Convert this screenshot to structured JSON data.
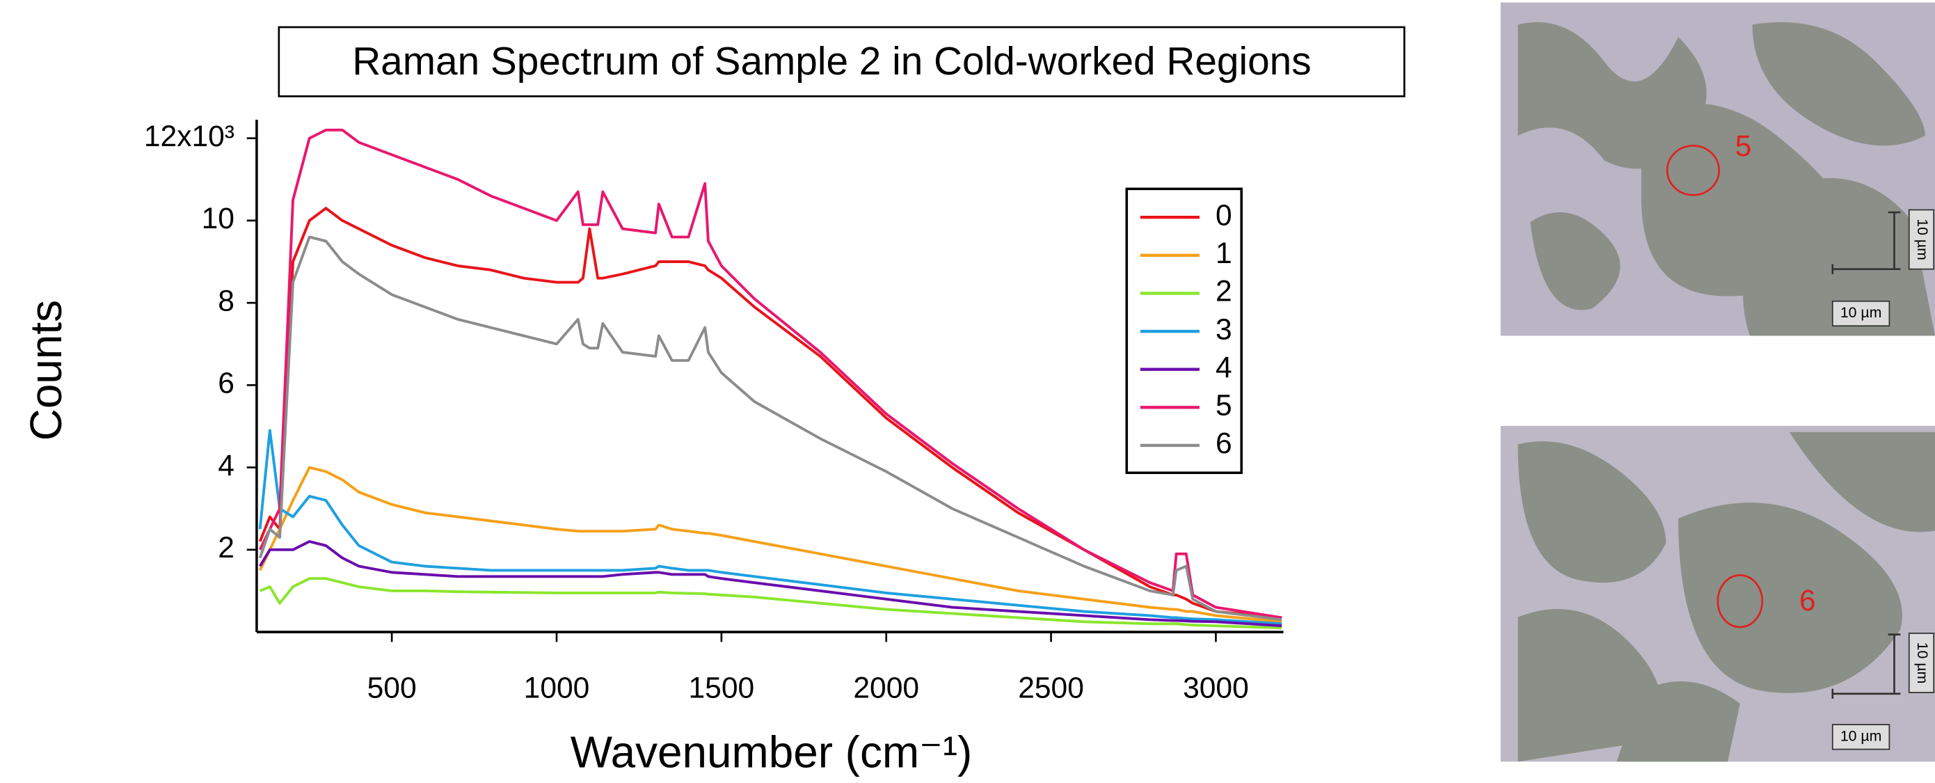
{
  "chart_data": {
    "type": "line",
    "title": "Raman Spectrum of Sample 2 in Cold-worked Regions",
    "x_label": "Wavenumber (cm⁻¹)",
    "y_label": "Counts",
    "x": [
      100,
      130,
      160,
      200,
      250,
      300,
      350,
      400,
      500,
      600,
      700,
      800,
      900,
      1000,
      1065,
      1080,
      1100,
      1125,
      1140,
      1200,
      1300,
      1310,
      1350,
      1400,
      1450,
      1460,
      1500,
      1600,
      1800,
      2000,
      2200,
      2400,
      2600,
      2800,
      2870,
      2880,
      2910,
      2930,
      3000,
      3200
    ],
    "xlim": [
      90,
      3205
    ],
    "xticks": [
      500,
      1000,
      1500,
      2000,
      2500,
      3000
    ],
    "ylim": [
      0,
      12450
    ],
    "yticks": [
      {
        "value": 2000,
        "label": "2"
      },
      {
        "value": 4000,
        "label": "4"
      },
      {
        "value": 6000,
        "label": "6"
      },
      {
        "value": 8000,
        "label": "8"
      },
      {
        "value": 10000,
        "label": "10"
      },
      {
        "value": 12000,
        "label": "12x10³"
      }
    ],
    "grid": false,
    "legend": "upper right",
    "series": [
      {
        "name": "0",
        "color": "#e8141a",
        "values": [
          2200,
          2800,
          2500,
          9000,
          10000,
          10300,
          10000,
          9800,
          9400,
          9100,
          8900,
          8800,
          8600,
          8500,
          8500,
          8600,
          9800,
          8600,
          8600,
          8700,
          8900,
          9000,
          9000,
          9000,
          8900,
          8800,
          8600,
          7900,
          6700,
          5200,
          4000,
          2900,
          2000,
          1100,
          900,
          900,
          800,
          700,
          500,
          350
        ]
      },
      {
        "name": "1",
        "color": "#f5a01a",
        "values": [
          1500,
          2000,
          2500,
          3200,
          4000,
          3900,
          3700,
          3400,
          3100,
          2900,
          2800,
          2700,
          2600,
          2500,
          2450,
          2450,
          2450,
          2450,
          2450,
          2450,
          2500,
          2600,
          2500,
          2450,
          2400,
          2400,
          2350,
          2200,
          1900,
          1600,
          1300,
          1000,
          800,
          600,
          550,
          550,
          500,
          500,
          400,
          250
        ]
      },
      {
        "name": "2",
        "color": "#8ae62e",
        "values": [
          1000,
          1100,
          700,
          1100,
          1300,
          1300,
          1200,
          1100,
          1000,
          1000,
          980,
          970,
          960,
          950,
          950,
          950,
          950,
          950,
          950,
          950,
          950,
          970,
          950,
          940,
          930,
          920,
          900,
          850,
          700,
          550,
          450,
          350,
          250,
          200,
          200,
          200,
          180,
          170,
          150,
          100
        ]
      },
      {
        "name": "3",
        "color": "#1ea0e0",
        "values": [
          2500,
          4900,
          3000,
          2800,
          3300,
          3200,
          2600,
          2100,
          1700,
          1600,
          1550,
          1500,
          1500,
          1500,
          1500,
          1500,
          1500,
          1500,
          1500,
          1500,
          1550,
          1600,
          1550,
          1500,
          1500,
          1500,
          1450,
          1350,
          1150,
          950,
          800,
          650,
          500,
          400,
          350,
          350,
          330,
          320,
          300,
          200
        ]
      },
      {
        "name": "4",
        "color": "#6a0dad",
        "values": [
          1600,
          2000,
          2000,
          2000,
          2200,
          2100,
          1800,
          1600,
          1450,
          1400,
          1350,
          1350,
          1350,
          1350,
          1350,
          1350,
          1350,
          1350,
          1350,
          1400,
          1450,
          1450,
          1400,
          1400,
          1400,
          1350,
          1300,
          1200,
          1000,
          800,
          600,
          500,
          400,
          300,
          280,
          280,
          270,
          260,
          250,
          150
        ]
      },
      {
        "name": "5",
        "color": "#e8186e",
        "values": [
          2000,
          2500,
          3000,
          10500,
          12000,
          12200,
          12200,
          11900,
          11600,
          11300,
          11000,
          10600,
          10300,
          10000,
          10700,
          9900,
          9900,
          9900,
          10700,
          9800,
          9700,
          10400,
          9600,
          9600,
          10900,
          9500,
          8900,
          8100,
          6800,
          5300,
          4100,
          3000,
          2000,
          1200,
          1000,
          1900,
          1900,
          900,
          600,
          350
        ]
      },
      {
        "name": "6",
        "color": "#8c8c8c",
        "values": [
          1800,
          2500,
          2300,
          8500,
          9600,
          9500,
          9000,
          8700,
          8200,
          7900,
          7600,
          7400,
          7200,
          7000,
          7600,
          7000,
          6900,
          6900,
          7500,
          6800,
          6700,
          7200,
          6600,
          6600,
          7400,
          6800,
          6300,
          5600,
          4700,
          3900,
          3000,
          2300,
          1600,
          1000,
          900,
          1500,
          1600,
          800,
          500,
          300
        ]
      }
    ]
  },
  "micrographs": [
    {
      "marker": "5",
      "scale_bar_label": "10 µm",
      "vertical_scale_label": "10 µm"
    },
    {
      "marker": "6",
      "scale_bar_label": "10 µm",
      "vertical_scale_label": "10 µm"
    }
  ]
}
